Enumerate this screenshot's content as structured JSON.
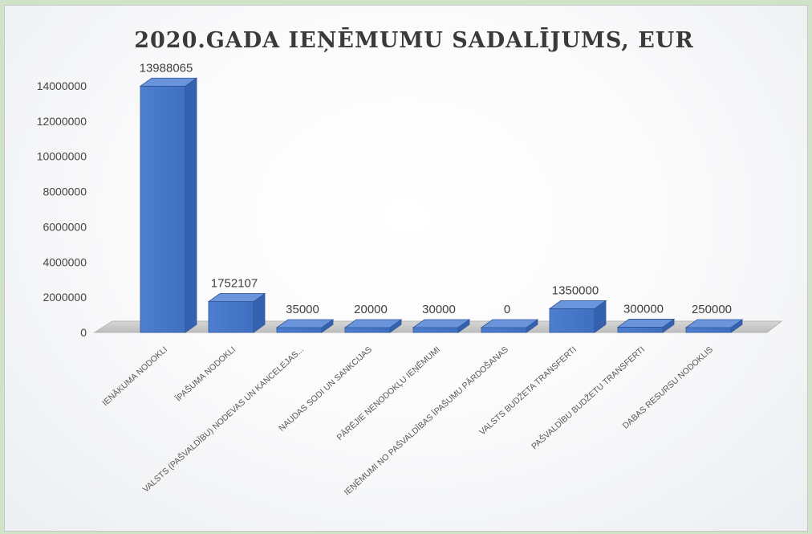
{
  "chart_data": {
    "type": "bar",
    "title": "2020.GADA IEŅĒMUMU SADALĪJUMS, EUR",
    "categories": [
      "IENĀKUMA NODOKLI",
      "ĪPAŠUMA NODOKLI",
      "VALSTS (PAŠVALDĪBU) NODEVAS UN KANCELEJAS...",
      "NAUDAS SODI UN SANKCIJAS",
      "PĀRĒJIE NENODOKĻU IEŅĒMUMI",
      "IEŅĒMUMI NO PAŠVALDĪBAS ĪPAŠUMU PĀRDOŠANAS",
      "VALSTS BUDŽETA TRANSFERTI",
      "PAŠVALDĪBU BUDŽETU TRANSFERTI",
      "DABAS RESURSU NODOKLIS"
    ],
    "values": [
      13988065,
      1752107,
      35000,
      20000,
      30000,
      0,
      1350000,
      300000,
      250000
    ],
    "data_labels": [
      "13988065",
      "1752107",
      "35000",
      "20000",
      "30000",
      "0",
      "1350000",
      "300000",
      "250000"
    ],
    "yticks": [
      "0",
      "2000000",
      "4000000",
      "6000000",
      "8000000",
      "10000000",
      "12000000",
      "14000000"
    ],
    "ylim": [
      0,
      14000000
    ],
    "xlabel": "",
    "ylabel": "",
    "grid": false,
    "bar_color": "#4472c4"
  }
}
